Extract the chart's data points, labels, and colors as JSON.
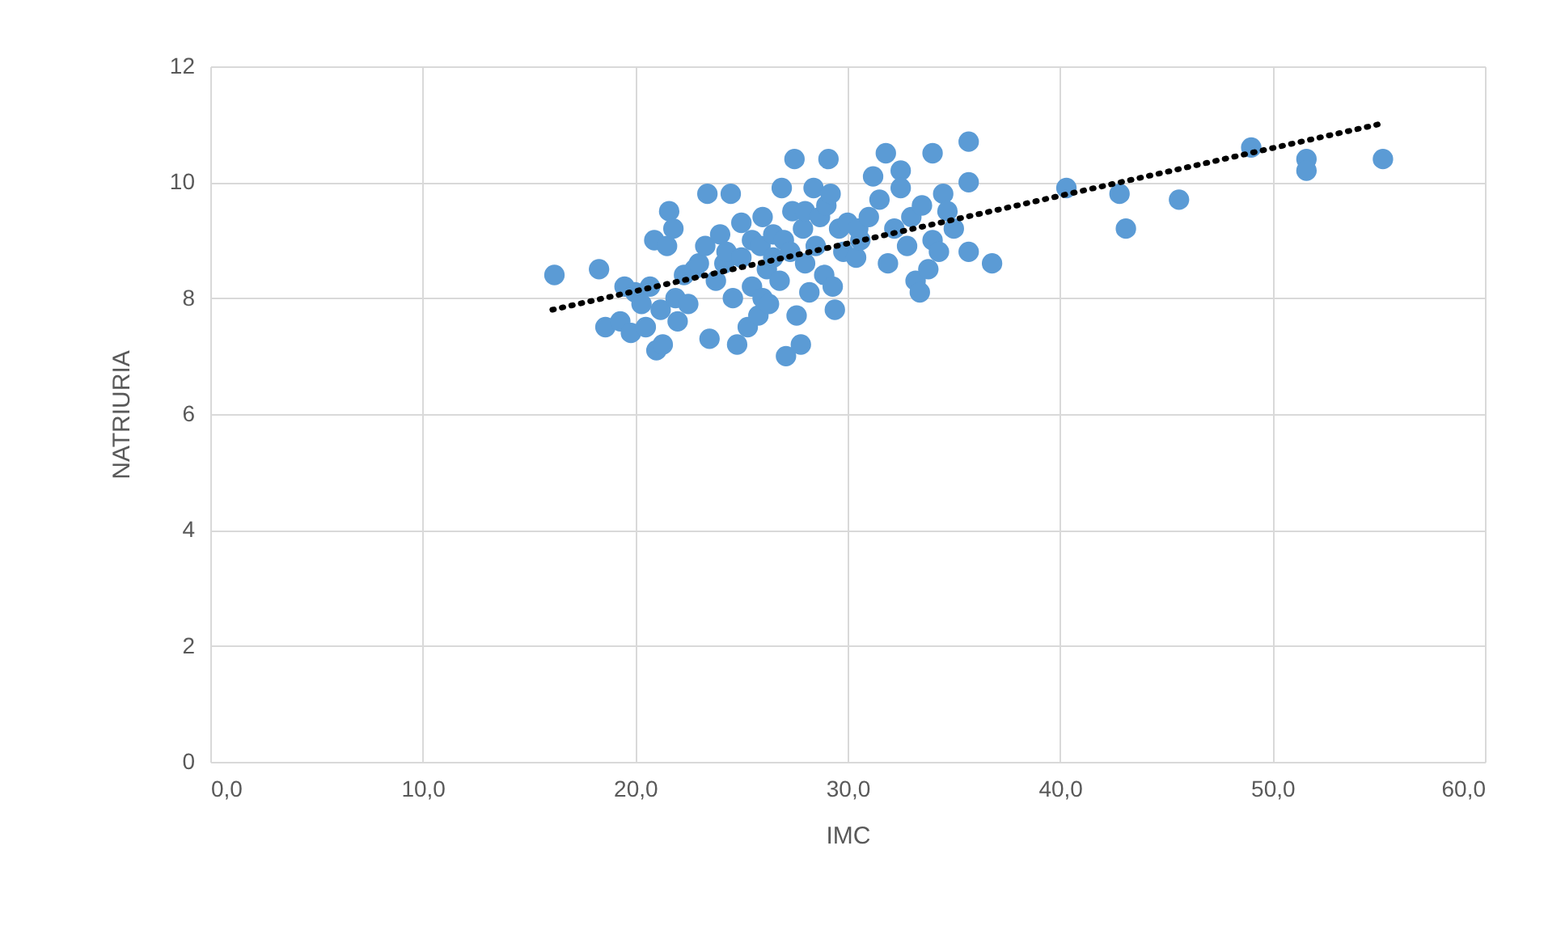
{
  "chart_data": {
    "type": "scatter",
    "xlabel": "IMC",
    "ylabel": "NATRIURIA",
    "xlim": [
      0,
      60
    ],
    "xticks": [
      {
        "value": 0,
        "label": "0,0"
      },
      {
        "value": 10,
        "label": "10,0"
      },
      {
        "value": 20,
        "label": "20,0"
      },
      {
        "value": 30,
        "label": "30,0"
      },
      {
        "value": 40,
        "label": "40,0"
      },
      {
        "value": 50,
        "label": "50,0"
      },
      {
        "value": 60,
        "label": "60,0"
      }
    ],
    "ylim": [
      0,
      12
    ],
    "yticks": [
      0,
      2,
      4,
      6,
      8,
      10,
      12
    ],
    "grid": true,
    "series": [
      {
        "marker": "circle",
        "color": "#5b9bd5",
        "x": [
          16.2,
          18.3,
          18.6,
          19.3,
          19.5,
          19.8,
          20.0,
          20.3,
          20.5,
          20.7,
          20.9,
          21.0,
          21.2,
          21.3,
          21.5,
          21.6,
          21.8,
          21.9,
          22.0,
          22.3,
          22.5,
          22.8,
          23.0,
          23.3,
          23.4,
          23.5,
          23.8,
          24.0,
          24.2,
          24.3,
          24.5,
          24.6,
          24.8,
          25.0,
          25.0,
          25.3,
          25.5,
          25.5,
          25.8,
          25.9,
          26.0,
          26.0,
          26.2,
          26.3,
          26.5,
          26.5,
          26.8,
          26.9,
          27.0,
          27.1,
          27.3,
          27.4,
          27.5,
          27.6,
          27.8,
          27.9,
          28.0,
          28.0,
          28.2,
          28.4,
          28.5,
          28.7,
          28.9,
          29.0,
          29.1,
          29.2,
          29.3,
          29.4,
          29.6,
          29.8,
          30.0,
          30.4,
          30.5,
          30.6,
          31.0,
          31.2,
          31.5,
          31.8,
          31.9,
          32.2,
          32.5,
          32.5,
          32.8,
          33.0,
          33.2,
          33.4,
          33.5,
          33.8,
          34.0,
          34.0,
          34.3,
          34.5,
          34.7,
          35.0,
          35.7,
          35.7,
          35.7,
          36.8,
          40.3,
          42.8,
          43.1,
          45.6,
          49.0,
          51.6,
          51.6,
          55.2
        ],
        "values": [
          8.4,
          8.5,
          7.5,
          7.6,
          8.2,
          7.4,
          8.1,
          7.9,
          7.5,
          8.2,
          9.0,
          7.1,
          7.8,
          7.2,
          8.9,
          9.5,
          9.2,
          8.0,
          7.6,
          8.4,
          7.9,
          8.5,
          8.6,
          8.9,
          9.8,
          7.3,
          8.3,
          9.1,
          8.6,
          8.8,
          9.8,
          8.0,
          7.2,
          9.3,
          8.7,
          7.5,
          9.0,
          8.2,
          7.7,
          8.9,
          9.4,
          8.0,
          8.5,
          7.9,
          9.1,
          8.7,
          8.3,
          9.9,
          9.0,
          7.0,
          8.8,
          9.5,
          10.4,
          7.7,
          7.2,
          9.2,
          8.6,
          9.5,
          8.1,
          9.9,
          8.9,
          9.4,
          8.4,
          9.6,
          10.4,
          9.8,
          8.2,
          7.8,
          9.2,
          8.8,
          9.3,
          8.7,
          9.2,
          9.0,
          9.4,
          10.1,
          9.7,
          10.5,
          8.6,
          9.2,
          10.2,
          9.9,
          8.9,
          9.4,
          8.3,
          8.1,
          9.6,
          8.5,
          10.5,
          9.0,
          8.8,
          9.8,
          9.5,
          9.2,
          10.7,
          10.0,
          8.8,
          8.6,
          9.9,
          9.8,
          9.2,
          9.7,
          10.6,
          10.4,
          10.2,
          10.4
        ]
      },
      {
        "type": "line",
        "marker": "none",
        "color": "#000000",
        "line_style": "dotted",
        "x": [
          16.1,
          55.0
        ],
        "values": [
          7.8,
          11.0
        ]
      }
    ]
  }
}
